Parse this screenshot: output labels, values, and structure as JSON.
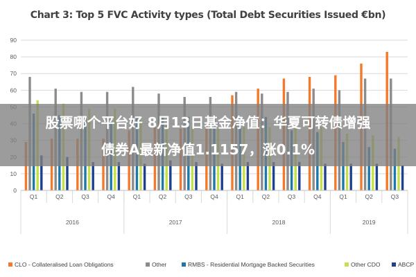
{
  "chart_data": {
    "type": "bar",
    "title": "Chart 3: Top 5 FVC Activity types (Total Debt Securities Issued €bn)",
    "xlabel": "",
    "ylabel": "",
    "ylim": [
      0,
      90
    ],
    "yticks": [
      "0",
      "10",
      "20",
      "30",
      "40",
      "50",
      "60",
      "70",
      "80",
      "90"
    ],
    "grid": true,
    "legend_position": "bottom",
    "categories": [
      "Q1",
      "Q2",
      "Q3",
      "Q4",
      "Q1",
      "Q2",
      "Q3",
      "Q4",
      "Q1",
      "Q2",
      "Q3",
      "Q4",
      "Q1",
      "Q2",
      "Q3"
    ],
    "year_groups": [
      {
        "label": "2016",
        "count": 4
      },
      {
        "label": "2017",
        "count": 4
      },
      {
        "label": "2018",
        "count": 4
      },
      {
        "label": "2019",
        "count": 3
      }
    ],
    "series": [
      {
        "name": "CLO - Collateralised Loan Obligations",
        "color": "#f4792a",
        "values": [
          29,
          31,
          31,
          31,
          36,
          38,
          37,
          39,
          57,
          61,
          67,
          68,
          69,
          76,
          83
        ]
      },
      {
        "name": "Other",
        "color": "#8c8c8c",
        "values": [
          68,
          61,
          59,
          59,
          62,
          58,
          56,
          56,
          59,
          58,
          59,
          61,
          60,
          67,
          67
        ]
      },
      {
        "name": "RMBS - Residential Mortgage Backed Securities",
        "color": "#1b78a8",
        "values": [
          46,
          45,
          43,
          43,
          44,
          44,
          44,
          43,
          44,
          44,
          36,
          35,
          29,
          26,
          25
        ]
      },
      {
        "name": "Other CDO",
        "color": "#c5e04a",
        "values": [
          54,
          52,
          49,
          49,
          42,
          39,
          38,
          37,
          38,
          38,
          38,
          38,
          34,
          33,
          32
        ]
      },
      {
        "name": "ABCP",
        "color": "#1f3f8f",
        "values": [
          21,
          20,
          17,
          17,
          16,
          18,
          17,
          16,
          17,
          17,
          17,
          16,
          16,
          16,
          15
        ]
      }
    ]
  },
  "overlay": {
    "line1": "股票哪个平台好 8月13日基金净值：华夏可转债增强",
    "line2": "债券A最新净值1.1157，涨0.1%"
  }
}
